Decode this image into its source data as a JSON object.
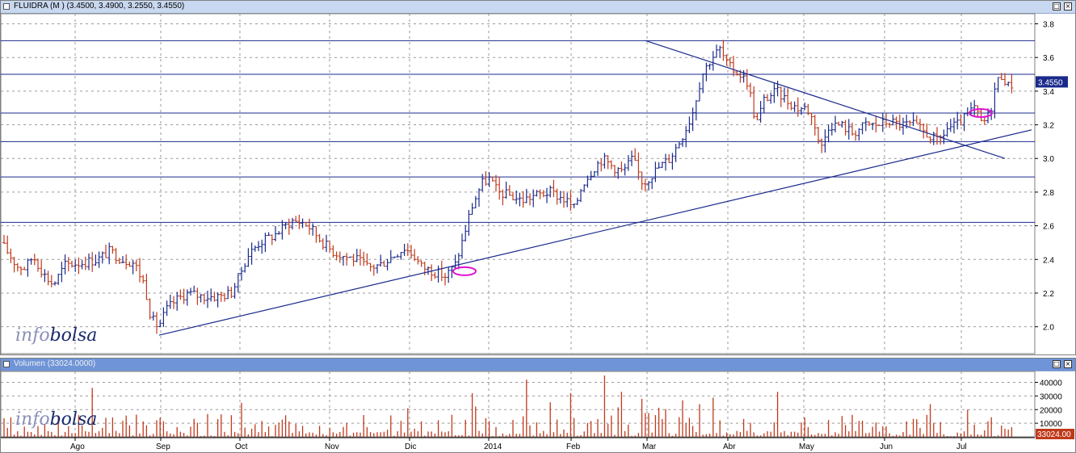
{
  "price_panel": {
    "title": "FLUIDRA (M ) (3.4500, 3.4900, 3.2550, 3.4550)",
    "last_value_badge": "3.4550",
    "watermark": [
      "info",
      "bolsa"
    ]
  },
  "volume_panel": {
    "title": "Volumen (33024.0000)",
    "last_value_badge": "33024.00",
    "watermark": [
      "info",
      "bolsa"
    ]
  },
  "colors": {
    "up_bar": "#1a2a8c",
    "down_bar": "#c0391b",
    "volume_bar": "#c0391b",
    "trendline": "#1a2a8c",
    "horizontal_line": "#1a2a8c",
    "highlight_ellipse": "#e010d0",
    "badge_bg": "#1a2a8c",
    "volume_badge_bg": "#c0391b"
  },
  "icons": {
    "close": "close-icon",
    "maximize": "maximize-icon"
  },
  "chart_data": [
    {
      "type": "ohlc",
      "title": "FLUIDRA (M ) (3.4500, 3.4900, 3.2550, 3.4550)",
      "yticks": [
        "2.0",
        "2.2",
        "2.4",
        "2.6",
        "2.8",
        "3.0",
        "3.2",
        "3.4",
        "3.6",
        "3.8"
      ],
      "ylim": [
        1.84,
        3.86
      ],
      "xticks": [
        "Ago",
        "Sep",
        "Oct",
        "Nov",
        "Dic",
        "2014",
        "Feb",
        "Mar",
        "Abr",
        "May",
        "Jun",
        "Jul"
      ],
      "horizontal_levels": [
        3.7,
        3.5,
        3.27,
        3.1,
        2.89,
        2.62
      ],
      "trendlines": [
        {
          "from": [
            "Sep",
            1.95
          ],
          "to": [
            "end",
            3.17
          ]
        },
        {
          "from": [
            "Mar",
            3.7
          ],
          "to": [
            "Jul",
            3.0
          ]
        }
      ],
      "highlights": [
        {
          "at": "Dic",
          "value": 2.33
        },
        {
          "at": "Jul",
          "value": 3.27
        }
      ],
      "price_path": [
        [
          0,
          2.5
        ],
        [
          12,
          2.42
        ],
        [
          20,
          2.36
        ],
        [
          30,
          2.35
        ],
        [
          40,
          2.42
        ],
        [
          55,
          2.3
        ],
        [
          65,
          2.25
        ],
        [
          80,
          2.37
        ],
        [
          100,
          2.38
        ],
        [
          120,
          2.4
        ],
        [
          135,
          2.45
        ],
        [
          150,
          2.4
        ],
        [
          165,
          2.38
        ],
        [
          178,
          2.25
        ],
        [
          186,
          2.05
        ],
        [
          195,
          2.0
        ],
        [
          205,
          2.1
        ],
        [
          215,
          2.15
        ],
        [
          230,
          2.2
        ],
        [
          250,
          2.18
        ],
        [
          270,
          2.18
        ],
        [
          285,
          2.2
        ],
        [
          295,
          2.3
        ],
        [
          305,
          2.42
        ],
        [
          320,
          2.5
        ],
        [
          340,
          2.55
        ],
        [
          360,
          2.63
        ],
        [
          375,
          2.62
        ],
        [
          385,
          2.58
        ],
        [
          395,
          2.52
        ],
        [
          410,
          2.45
        ],
        [
          425,
          2.42
        ],
        [
          440,
          2.4
        ],
        [
          455,
          2.35
        ],
        [
          470,
          2.37
        ],
        [
          485,
          2.42
        ],
        [
          500,
          2.47
        ],
        [
          512,
          2.42
        ],
        [
          520,
          2.36
        ],
        [
          535,
          2.33
        ],
        [
          550,
          2.3
        ],
        [
          562,
          2.36
        ],
        [
          572,
          2.52
        ],
        [
          582,
          2.7
        ],
        [
          595,
          2.85
        ],
        [
          605,
          2.88
        ],
        [
          615,
          2.8
        ],
        [
          630,
          2.78
        ],
        [
          645,
          2.75
        ],
        [
          660,
          2.78
        ],
        [
          680,
          2.8
        ],
        [
          700,
          2.75
        ],
        [
          710,
          2.7
        ],
        [
          720,
          2.85
        ],
        [
          735,
          2.95
        ],
        [
          745,
          3.0
        ],
        [
          758,
          2.95
        ],
        [
          770,
          2.92
        ],
        [
          782,
          3.0
        ],
        [
          795,
          2.85
        ],
        [
          805,
          2.9
        ],
        [
          815,
          2.95
        ],
        [
          828,
          3.0
        ],
        [
          840,
          3.1
        ],
        [
          855,
          3.25
        ],
        [
          868,
          3.5
        ],
        [
          880,
          3.6
        ],
        [
          890,
          3.65
        ],
        [
          900,
          3.55
        ],
        [
          915,
          3.5
        ],
        [
          925,
          3.45
        ],
        [
          935,
          3.2
        ],
        [
          945,
          3.35
        ],
        [
          960,
          3.4
        ],
        [
          972,
          3.35
        ],
        [
          985,
          3.3
        ],
        [
          998,
          3.3
        ],
        [
          1008,
          3.2
        ],
        [
          1015,
          3.05
        ],
        [
          1025,
          3.2
        ],
        [
          1040,
          3.2
        ],
        [
          1055,
          3.15
        ],
        [
          1070,
          3.2
        ],
        [
          1085,
          3.2
        ],
        [
          1100,
          3.22
        ],
        [
          1115,
          3.2
        ],
        [
          1130,
          3.2
        ],
        [
          1145,
          3.15
        ],
        [
          1160,
          3.1
        ],
        [
          1172,
          3.18
        ],
        [
          1185,
          3.2
        ],
        [
          1195,
          3.25
        ],
        [
          1205,
          3.3
        ],
        [
          1215,
          3.2
        ],
        [
          1225,
          3.28
        ],
        [
          1232,
          3.45
        ],
        [
          1240,
          3.5
        ],
        [
          1248,
          3.42
        ],
        [
          1255,
          3.46
        ]
      ]
    },
    {
      "type": "bar",
      "title": "Volumen (33024.0000)",
      "yticks": [
        "10000",
        "20000",
        "30000",
        "40000"
      ],
      "ylim": [
        0,
        48000
      ],
      "last_value": 33024,
      "spikes": [
        [
          108,
          36000
        ],
        [
          195,
          14000
        ],
        [
          295,
          25000
        ],
        [
          500,
          21000
        ],
        [
          578,
          32000
        ],
        [
          645,
          42000
        ],
        [
          744,
          45000
        ],
        [
          765,
          33000
        ],
        [
          860,
          24000
        ],
        [
          958,
          33000
        ],
        [
          1148,
          24000
        ],
        [
          1192,
          20000
        ]
      ]
    }
  ]
}
